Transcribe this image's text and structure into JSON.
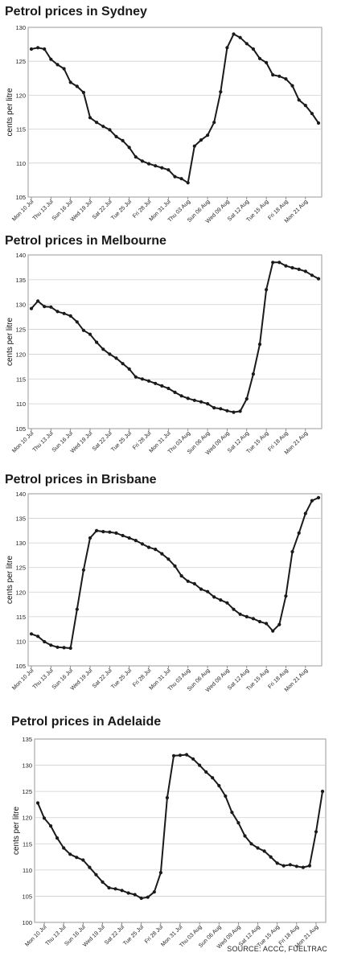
{
  "source_note": "SOURCE: ACCC, FUELTRAC",
  "chart_data": [
    {
      "type": "line",
      "title": "Petrol prices in Sydney",
      "ylabel": "cents per litre",
      "xlabel": "",
      "ylim": [
        105,
        130
      ],
      "yticks": [
        105,
        110,
        115,
        120,
        125,
        130
      ],
      "grid": "horizontal",
      "x_tick_labels": [
        "Mon 10 Jul",
        "Thu 13 Jul",
        "Sun 16 Jul",
        "Wed 19 Jul",
        "Sat 22 Jul",
        "Tue 25 Jul",
        "Fri 28 Jul",
        "Mon 31 Jul",
        "Thu 03 Aug",
        "Sun 06 Aug",
        "Wed 09 Aug",
        "Sat 12 Aug",
        "Tue 15 Aug",
        "Fri 18 Aug",
        "Mon 21 Aug"
      ],
      "series": [
        {
          "values": [
            126.8,
            127.0,
            126.8,
            125.3,
            124.5,
            123.9,
            121.9,
            121.3,
            120.4,
            116.7,
            116.0,
            115.4,
            114.9,
            113.9,
            113.3,
            112.3,
            110.9,
            110.3,
            109.9,
            109.6,
            109.3,
            109.0,
            108.0,
            107.7,
            107.1,
            112.5,
            113.4,
            114.1,
            116.0,
            120.5,
            127.0,
            129.0,
            128.5,
            127.6,
            126.8,
            125.4,
            124.8,
            123.0,
            122.8,
            122.4,
            121.4,
            119.3,
            118.5,
            117.3,
            115.9
          ]
        }
      ]
    },
    {
      "type": "line",
      "title": "Petrol prices in Melbourne",
      "ylabel": "cents per litre",
      "xlabel": "",
      "ylim": [
        105,
        140
      ],
      "yticks": [
        105,
        110,
        115,
        120,
        125,
        130,
        135,
        140
      ],
      "grid": "horizontal",
      "x_tick_labels": [
        "Mon 10 Jul",
        "Thu 13 Jul",
        "Sun 16 Jul",
        "Wed 19 Jul",
        "Sat 22 Jul",
        "Tue 25 Jul",
        "Fri 28 Jul",
        "Mon 31 Jul",
        "Thu 03 Aug",
        "Sun 06 Aug",
        "Wed 09 Aug",
        "Sat 12 Aug",
        "Tue 15 Aug",
        "Fri 18 Aug",
        "Mon 21 Aug"
      ],
      "series": [
        {
          "values": [
            129.2,
            130.7,
            129.6,
            129.5,
            128.6,
            128.2,
            127.7,
            126.5,
            124.8,
            124.0,
            122.4,
            121.0,
            120.0,
            119.2,
            118.1,
            117.0,
            115.4,
            115.0,
            114.6,
            114.1,
            113.6,
            113.1,
            112.3,
            111.6,
            111.1,
            110.7,
            110.4,
            110.0,
            109.2,
            109.0,
            108.6,
            108.3,
            108.5,
            111.0,
            116.0,
            122.0,
            133.0,
            138.5,
            138.5,
            137.8,
            137.4,
            137.1,
            136.7,
            135.9,
            135.2
          ]
        }
      ]
    },
    {
      "type": "line",
      "title": "Petrol prices in Brisbane",
      "ylabel": "cents per litre",
      "xlabel": "",
      "ylim": [
        105,
        140
      ],
      "yticks": [
        105,
        110,
        115,
        120,
        125,
        130,
        135,
        140
      ],
      "grid": "horizontal",
      "x_tick_labels": [
        "Mon 10 Jul",
        "Thu 13 Jul",
        "Sun 16 Jul",
        "Wed 19 Jul",
        "Sat 22 Jul",
        "Tue 25 Jul",
        "Fri 28 Jul",
        "Mon 31 Jul",
        "Thu 03 Aug",
        "Sun 06 Aug",
        "Wed 09 Aug",
        "Sat 12 Aug",
        "Tue 15 Aug",
        "Fri 18 Aug",
        "Mon 21 Aug"
      ],
      "series": [
        {
          "values": [
            111.5,
            111.0,
            109.9,
            109.2,
            108.8,
            108.7,
            108.6,
            116.5,
            124.5,
            131.0,
            132.5,
            132.3,
            132.2,
            132.0,
            131.5,
            131.0,
            130.5,
            129.8,
            129.1,
            128.7,
            127.8,
            126.7,
            125.3,
            123.3,
            122.2,
            121.7,
            120.6,
            120.1,
            119.0,
            118.4,
            117.8,
            116.5,
            115.5,
            115.0,
            114.6,
            114.0,
            113.6,
            112.1,
            113.4,
            119.2,
            128.2,
            132.0,
            136.0,
            138.6,
            139.2
          ]
        }
      ]
    },
    {
      "type": "line",
      "title": "Petrol prices in Adelaide",
      "ylabel": "cents per litre",
      "xlabel": "",
      "ylim": [
        100,
        135
      ],
      "yticks": [
        100,
        105,
        110,
        115,
        120,
        125,
        130,
        135
      ],
      "grid": "horizontal",
      "x_tick_labels": [
        "Mon 10 Jul",
        "Thu 13 Jul",
        "Sun 16 Jul",
        "Wed 19 Jul",
        "Sat 22 Jul",
        "Tue 25 Jul",
        "Fri 28 Jul",
        "Mon 31 Jul",
        "Thu 03 Aug",
        "Sun 06 Aug",
        "Wed 09 Aug",
        "Sat 12 Aug",
        "Tue 15 Aug",
        "Fri 18 Aug",
        "Mon 21 Aug"
      ],
      "series": [
        {
          "values": [
            122.8,
            119.9,
            118.4,
            116.1,
            114.2,
            113.0,
            112.4,
            111.9,
            110.5,
            109.1,
            107.7,
            106.6,
            106.4,
            106.1,
            105.6,
            105.3,
            104.6,
            104.8,
            105.8,
            109.5,
            123.8,
            131.8,
            131.9,
            132.0,
            131.2,
            130.0,
            128.7,
            127.6,
            126.1,
            124.1,
            121.0,
            119.0,
            116.5,
            115.0,
            114.2,
            113.6,
            112.5,
            111.3,
            110.8,
            111.0,
            110.7,
            110.5,
            110.8,
            117.3,
            125.0
          ]
        }
      ]
    }
  ]
}
